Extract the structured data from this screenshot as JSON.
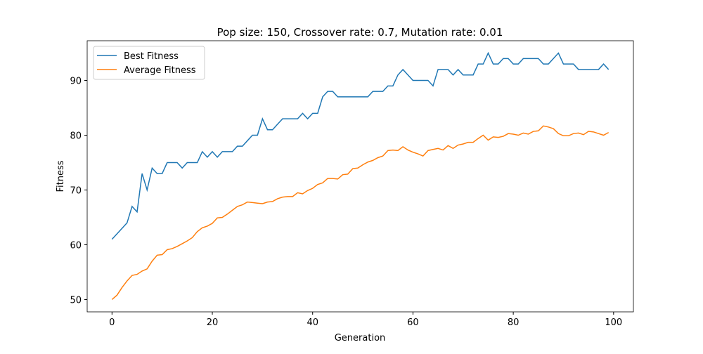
{
  "chart_data": {
    "type": "line",
    "title": "Pop size: 150, Crossover rate: 0.7, Mutation rate: 0.01",
    "x_label": "Generation",
    "y_label": "Fitness",
    "x": [
      0,
      1,
      2,
      3,
      4,
      5,
      6,
      7,
      8,
      9,
      10,
      11,
      12,
      13,
      14,
      15,
      16,
      17,
      18,
      19,
      20,
      21,
      22,
      23,
      24,
      25,
      26,
      27,
      28,
      29,
      30,
      31,
      32,
      33,
      34,
      35,
      36,
      37,
      38,
      39,
      40,
      41,
      42,
      43,
      44,
      45,
      46,
      47,
      48,
      49,
      50,
      51,
      52,
      53,
      54,
      55,
      56,
      57,
      58,
      59,
      60,
      61,
      62,
      63,
      64,
      65,
      66,
      67,
      68,
      69,
      70,
      71,
      72,
      73,
      74,
      75,
      76,
      77,
      78,
      79,
      80,
      81,
      82,
      83,
      84,
      85,
      86,
      87,
      88,
      89,
      90,
      91,
      92,
      93,
      94,
      95,
      96,
      97,
      98,
      99
    ],
    "series": [
      {
        "name": "Best Fitness",
        "color": "#1f77b4",
        "values": [
          61,
          62,
          63,
          64,
          67,
          66,
          73,
          70,
          74,
          73,
          73,
          75,
          75,
          75,
          74,
          75,
          75,
          75,
          77,
          76,
          77,
          76,
          77,
          77,
          77,
          78,
          78,
          79,
          80,
          80,
          83,
          81,
          81,
          82,
          83,
          83,
          83,
          83,
          84,
          83,
          84,
          84,
          87,
          88,
          88,
          87,
          87,
          87,
          87,
          87,
          87,
          87,
          88,
          88,
          88,
          89,
          89,
          91,
          92,
          91,
          90,
          90,
          90,
          90,
          89,
          92,
          92,
          92,
          91,
          92,
          91,
          91,
          91,
          93,
          93,
          95,
          93,
          93,
          94,
          94,
          93,
          93,
          94,
          94,
          94,
          94,
          93,
          93,
          94,
          95,
          93,
          93,
          93,
          92,
          92,
          92,
          92,
          92,
          93,
          92
        ]
      },
      {
        "name": "Average Fitness",
        "color": "#ff7f0e",
        "values": [
          50,
          50.8,
          52.2,
          53.4,
          54.4,
          54.6,
          55.2,
          55.6,
          57,
          58.1,
          58.2,
          59.1,
          59.3,
          59.7,
          60.2,
          60.7,
          61.3,
          62.4,
          63.1,
          63.4,
          63.9,
          64.9,
          65,
          65.6,
          66.3,
          67,
          67.3,
          67.8,
          67.7,
          67.6,
          67.5,
          67.8,
          67.9,
          68.4,
          68.7,
          68.8,
          68.8,
          69.5,
          69.3,
          69.9,
          70.3,
          71,
          71.3,
          72.1,
          72.1,
          72,
          72.8,
          72.9,
          73.9,
          74,
          74.6,
          75.1,
          75.4,
          75.9,
          76.2,
          77.2,
          77.3,
          77.2,
          77.9,
          77.3,
          76.9,
          76.6,
          76.2,
          77.2,
          77.4,
          77.6,
          77.3,
          78.1,
          77.6,
          78.2,
          78.4,
          78.7,
          78.7,
          79.4,
          80,
          79.1,
          79.7,
          79.6,
          79.8,
          80.3,
          80.2,
          80,
          80.4,
          80.2,
          80.7,
          80.8,
          81.7,
          81.5,
          81.2,
          80.3,
          79.9,
          79.9,
          80.3,
          80.4,
          80.1,
          80.7,
          80.6,
          80.3,
          80,
          80.5
        ]
      }
    ],
    "xlim": [
      -4.95,
      103.95
    ],
    "ylim": [
      47.75,
      97.25
    ],
    "xticks": [
      0,
      20,
      40,
      60,
      80,
      100
    ],
    "yticks": [
      50,
      60,
      70,
      80,
      90
    ],
    "legend": "upper left"
  }
}
